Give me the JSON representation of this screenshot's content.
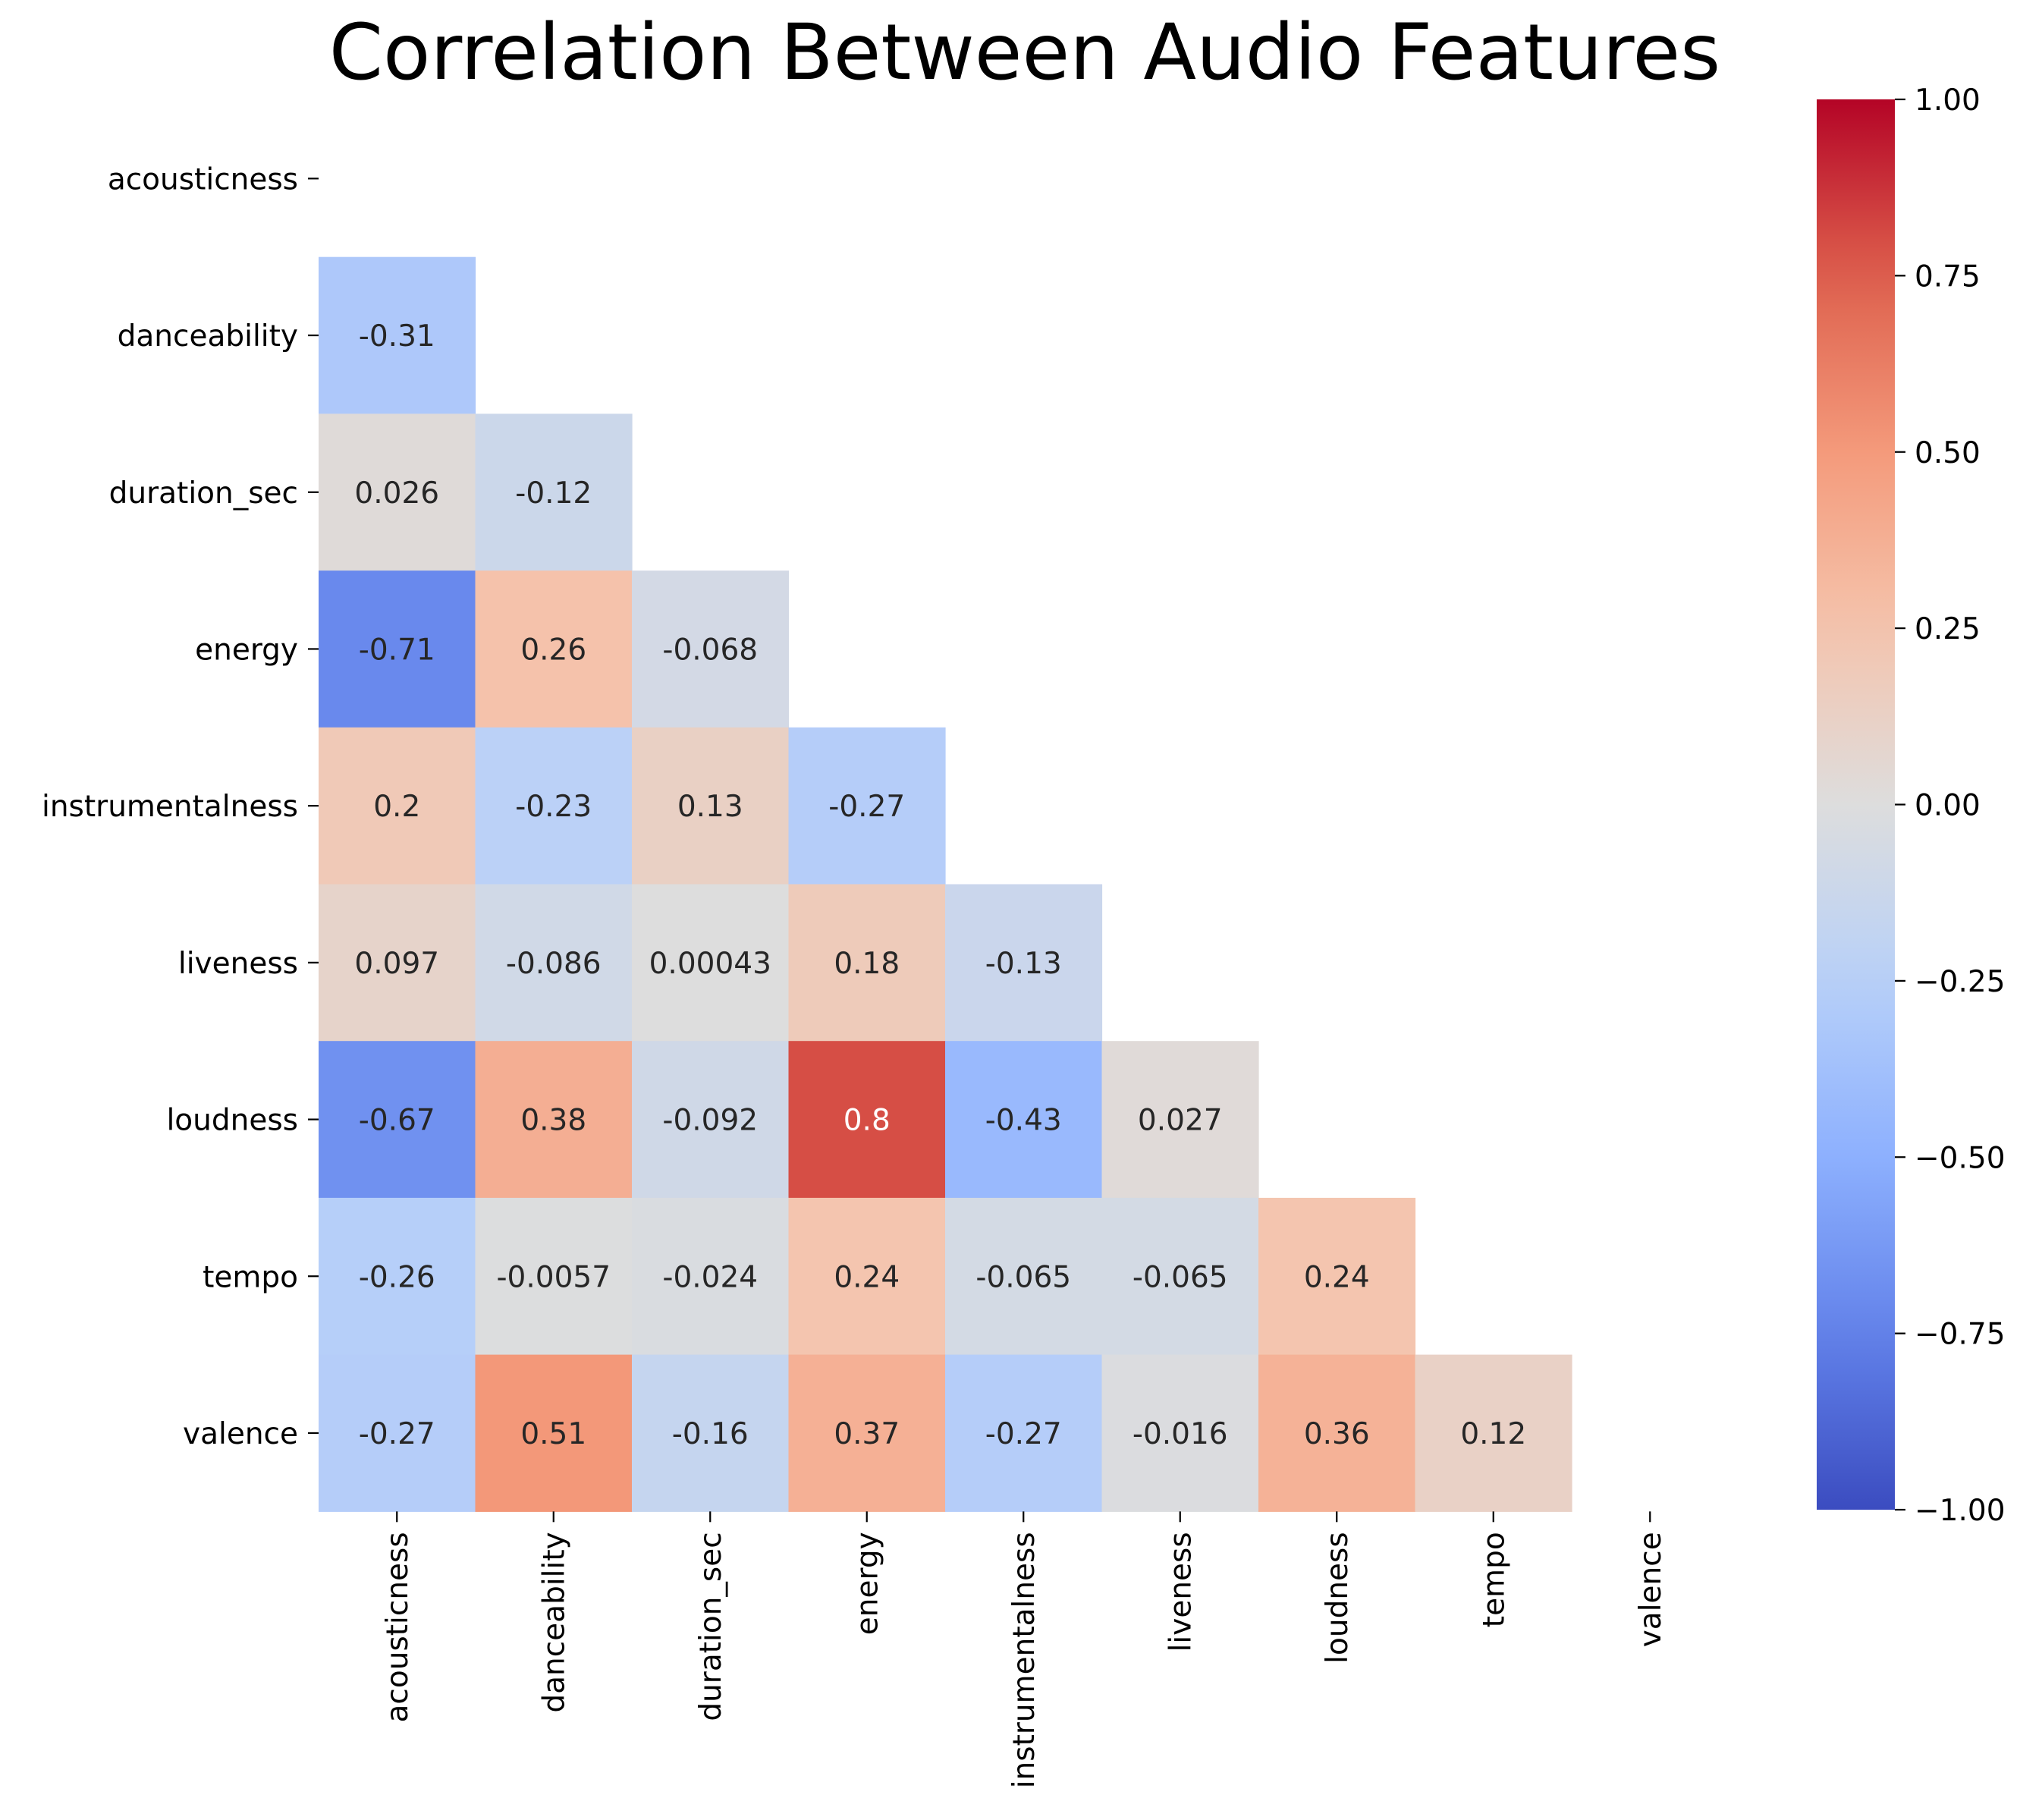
{
  "chart_data": {
    "type": "heatmap",
    "title": "Correlation Between Audio Features",
    "variables": [
      "acousticness",
      "danceability",
      "duration_sec",
      "energy",
      "instrumentalness",
      "liveness",
      "loudness",
      "tempo",
      "valence"
    ],
    "mask": "upper-triangle-and-diagonal",
    "matrix": [
      [
        null,
        null,
        null,
        null,
        null,
        null,
        null,
        null,
        null
      ],
      [
        -0.31,
        null,
        null,
        null,
        null,
        null,
        null,
        null,
        null
      ],
      [
        0.026,
        -0.12,
        null,
        null,
        null,
        null,
        null,
        null,
        null
      ],
      [
        -0.71,
        0.26,
        -0.068,
        null,
        null,
        null,
        null,
        null,
        null
      ],
      [
        0.2,
        -0.23,
        0.13,
        -0.27,
        null,
        null,
        null,
        null,
        null
      ],
      [
        0.097,
        -0.086,
        0.00043,
        0.18,
        -0.13,
        null,
        null,
        null,
        null
      ],
      [
        -0.67,
        0.38,
        -0.092,
        0.8,
        -0.43,
        0.027,
        null,
        null,
        null
      ],
      [
        -0.26,
        -0.0057,
        -0.024,
        0.24,
        -0.065,
        -0.065,
        0.24,
        null,
        null
      ],
      [
        -0.27,
        0.51,
        -0.16,
        0.37,
        -0.27,
        -0.016,
        0.36,
        0.12,
        null
      ]
    ],
    "annotations": [
      [
        null,
        null,
        null,
        null,
        null,
        null,
        null,
        null,
        null
      ],
      [
        "-0.31",
        null,
        null,
        null,
        null,
        null,
        null,
        null,
        null
      ],
      [
        "0.026",
        "-0.12",
        null,
        null,
        null,
        null,
        null,
        null,
        null
      ],
      [
        "-0.71",
        "0.26",
        "-0.068",
        null,
        null,
        null,
        null,
        null,
        null
      ],
      [
        "0.2",
        "-0.23",
        "0.13",
        "-0.27",
        null,
        null,
        null,
        null,
        null
      ],
      [
        "0.097",
        "-0.086",
        "0.00043",
        "0.18",
        "-0.13",
        null,
        null,
        null,
        null
      ],
      [
        "-0.67",
        "0.38",
        "-0.092",
        "0.8",
        "-0.43",
        "0.027",
        null,
        null,
        null
      ],
      [
        "-0.26",
        "-0.0057",
        "-0.024",
        "0.24",
        "-0.065",
        "-0.065",
        "0.24",
        null,
        null
      ],
      [
        "-0.27",
        "0.51",
        "-0.16",
        "0.37",
        "-0.27",
        "-0.016",
        "0.36",
        "0.12",
        null
      ]
    ],
    "colormap": "coolwarm",
    "vmin": -1,
    "vmax": 1,
    "colorbar": {
      "ticks": [
        1.0,
        0.75,
        0.5,
        0.25,
        0.0,
        -0.25,
        -0.5,
        -0.75,
        -1.0
      ],
      "tick_labels": [
        "1.00",
        "0.75",
        "0.50",
        "0.25",
        "0.00",
        "−0.25",
        "−0.50",
        "−0.75",
        "−1.00"
      ]
    },
    "grid": false,
    "xlabel": "",
    "ylabel": ""
  }
}
